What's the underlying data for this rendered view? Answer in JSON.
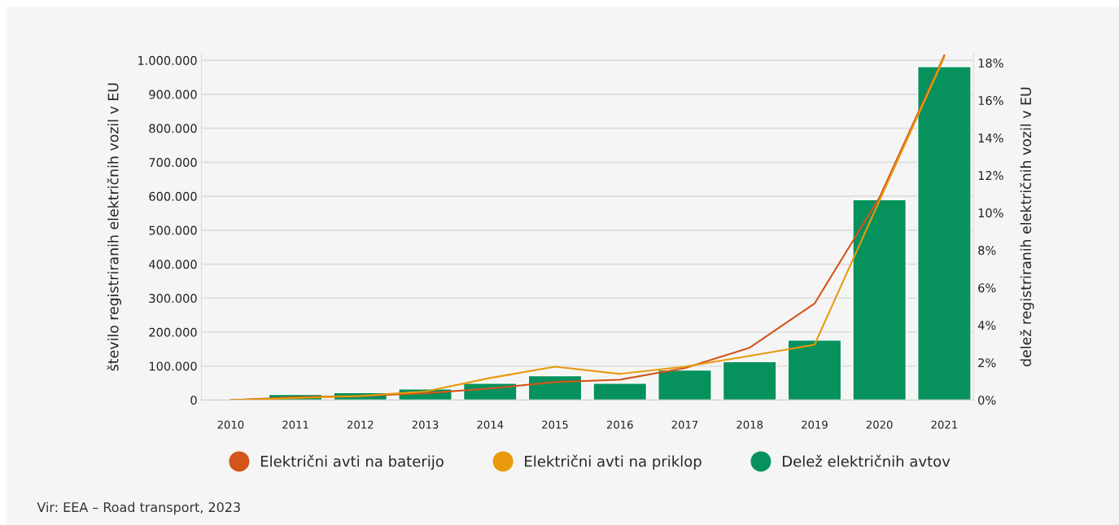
{
  "chart_data": {
    "type": "bar",
    "categories": [
      "2010",
      "2011",
      "2012",
      "2013",
      "2014",
      "2015",
      "2016",
      "2017",
      "2018",
      "2019",
      "2020",
      "2021"
    ],
    "ylabel": "število registriranih električnih vozil v EU",
    "y2label": "delež registriranih električnih vozil v EU",
    "series": [
      {
        "name": "Električni avti na baterijo",
        "type": "line",
        "color": "#d4541c",
        "values": [
          0,
          8000,
          12000,
          20000,
          34000,
          53000,
          60000,
          94000,
          154000,
          284000,
          596000,
          1015000
        ]
      },
      {
        "name": "Električni avti na priklop",
        "type": "line",
        "color": "#e89a0c",
        "values": [
          0,
          6000,
          12000,
          25000,
          65000,
          98000,
          77000,
          98000,
          130000,
          163000,
          587000,
          1010000
        ]
      },
      {
        "name": "Delež električnih avtov",
        "axis": "y2",
        "color": "#07915c",
        "values": [
          null,
          0.3,
          0.4,
          0.6,
          0.9,
          1.3,
          0.9,
          1.6,
          2.05,
          3.2,
          10.7,
          17.8
        ]
      }
    ],
    "ylim": [
      0,
      1020000
    ],
    "yticks": [
      {
        "value": 0,
        "label": "0"
      },
      {
        "value": 100000,
        "label": "100.000"
      },
      {
        "value": 200000,
        "label": "200.000"
      },
      {
        "value": 300000,
        "label": "300.000"
      },
      {
        "value": 400000,
        "label": "400.000"
      },
      {
        "value": 500000,
        "label": "500.000"
      },
      {
        "value": 600000,
        "label": "600.000"
      },
      {
        "value": 700000,
        "label": "700.000"
      },
      {
        "value": 800000,
        "label": "800.000"
      },
      {
        "value": 900000,
        "label": "900.000"
      },
      {
        "value": 1000000,
        "label": "1.000.000"
      }
    ],
    "y2lim": [
      0,
      18.5
    ],
    "y2ticks": [
      {
        "value": 0,
        "label": "0%"
      },
      {
        "value": 2,
        "label": "2%"
      },
      {
        "value": 4,
        "label": "4%"
      },
      {
        "value": 6,
        "label": "6%"
      },
      {
        "value": 8,
        "label": "8%"
      },
      {
        "value": 10,
        "label": "10%"
      },
      {
        "value": 12,
        "label": "12%"
      },
      {
        "value": 14,
        "label": "14%"
      },
      {
        "value": 16,
        "label": "16%"
      },
      {
        "value": 18,
        "label": "18%"
      }
    ],
    "grid": "y",
    "legend": "bottom",
    "annotations": [
      "Vir: EEA – Road transport, 2023"
    ]
  }
}
